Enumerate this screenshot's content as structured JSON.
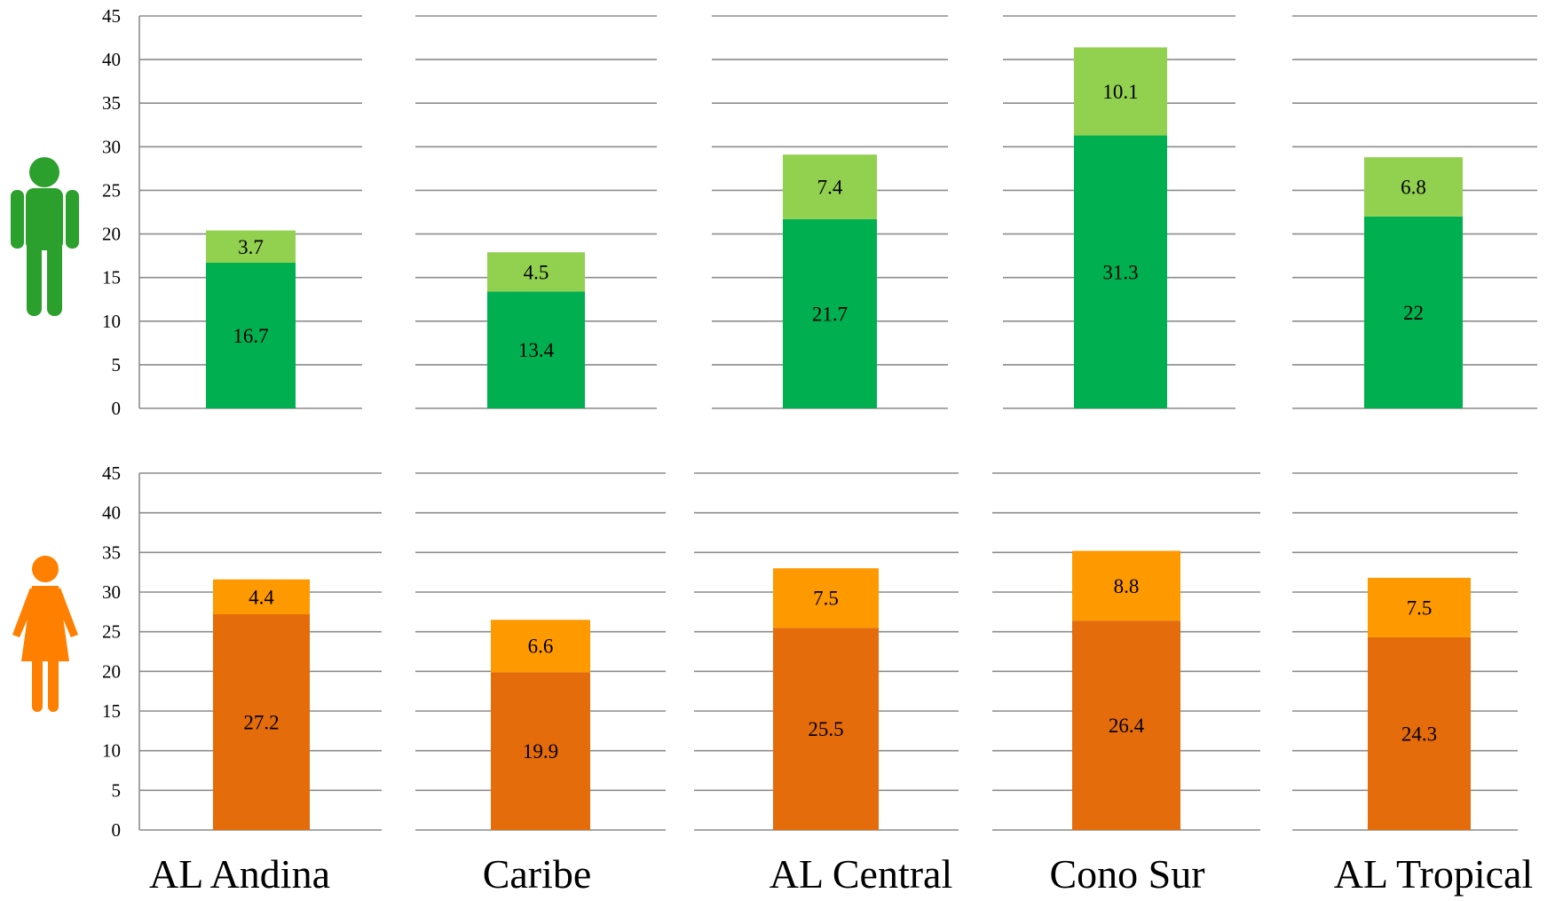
{
  "chart_data": [
    {
      "type": "bar",
      "stacked": true,
      "panel": "male",
      "icon": "male-figure-icon",
      "categories": [
        "AL Andina",
        "Caribe",
        "AL Central",
        "Cono Sur",
        "AL Tropical"
      ],
      "series": [
        {
          "values": [
            16.7,
            13.4,
            21.7,
            31.3,
            22
          ],
          "color": "#00b050"
        },
        {
          "values": [
            3.7,
            4.5,
            7.4,
            10.1,
            6.8
          ],
          "color": "#92d050"
        }
      ],
      "yticks": [
        0,
        5,
        10,
        15,
        20,
        25,
        30,
        35,
        40,
        45
      ],
      "ylim": [
        0,
        45
      ],
      "grid": true,
      "legend": "none",
      "icon_color": "#2ca02c"
    },
    {
      "type": "bar",
      "stacked": true,
      "panel": "female",
      "icon": "female-figure-icon",
      "categories": [
        "AL Andina",
        "Caribe",
        "AL Central",
        "Cono Sur",
        "AL Tropical"
      ],
      "series": [
        {
          "values": [
            27.2,
            19.9,
            25.5,
            26.4,
            24.3
          ],
          "color": "#e46c0a"
        },
        {
          "values": [
            4.4,
            6.6,
            7.5,
            8.8,
            7.5
          ],
          "color": "#ff9900"
        }
      ],
      "yticks": [
        0,
        5,
        10,
        15,
        20,
        25,
        30,
        35,
        40,
        45
      ],
      "ylim": [
        0,
        45
      ],
      "grid": true,
      "legend": "none",
      "icon_color": "#ff8000"
    }
  ],
  "regions": [
    "AL Andina",
    "Caribe",
    "AL Central",
    "Cono Sur",
    "AL Tropical"
  ]
}
